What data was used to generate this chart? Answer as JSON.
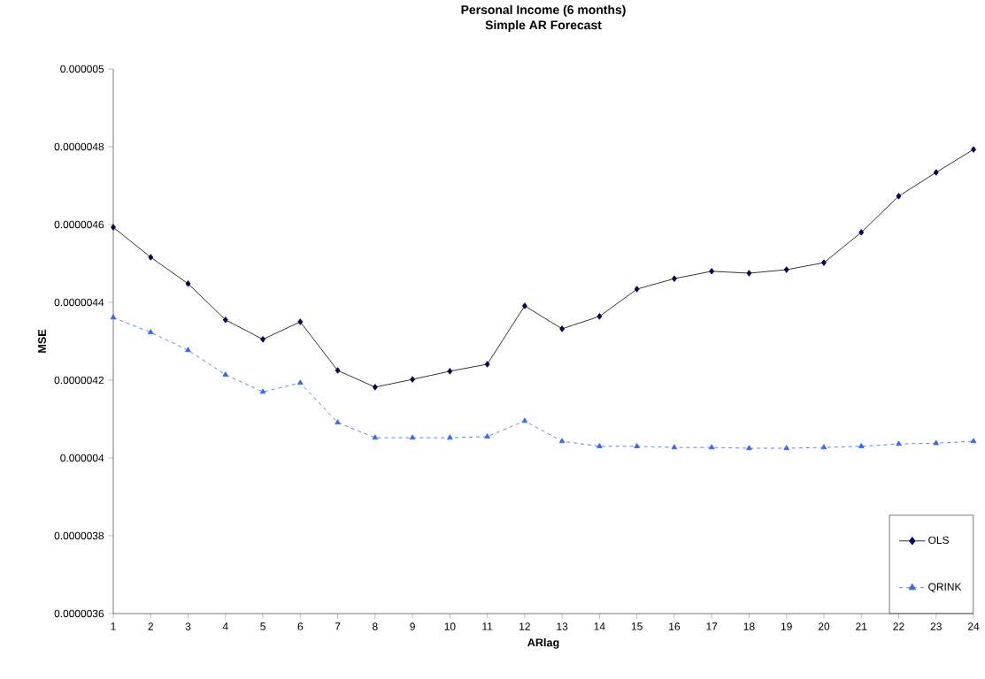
{
  "chart_data": {
    "type": "line",
    "title": "Personal Income (6 months)",
    "subtitle": "Simple AR Forecast",
    "xlabel": "ARlag",
    "ylabel": "MSE",
    "categories": [
      "1",
      "2",
      "3",
      "4",
      "5",
      "6",
      "7",
      "8",
      "9",
      "10",
      "11",
      "12",
      "13",
      "14",
      "15",
      "16",
      "17",
      "18",
      "19",
      "20",
      "21",
      "22",
      "23",
      "24"
    ],
    "series": [
      {
        "name": "OLS",
        "color": "#000080",
        "marker": "diamond",
        "line_style": "solid",
        "values": [
          4.593e-06,
          4.516e-06,
          4.448e-06,
          4.355e-06,
          4.305e-06,
          4.35e-06,
          4.225e-06,
          4.182e-06,
          4.202e-06,
          4.223e-06,
          4.241e-06,
          4.391e-06,
          4.332e-06,
          4.364e-06,
          4.434e-06,
          4.461e-06,
          4.48e-06,
          4.475e-06,
          4.484e-06,
          4.502e-06,
          4.58e-06,
          4.673e-06,
          4.734e-06,
          4.793e-06
        ]
      },
      {
        "name": "QRINK",
        "color": "#3366ff",
        "marker": "triangle",
        "line_style": "dashed",
        "values": [
          4.361e-06,
          4.323e-06,
          4.277e-06,
          4.214e-06,
          4.17e-06,
          4.193e-06,
          4.091e-06,
          4.052e-06,
          4.052e-06,
          4.052e-06,
          4.055e-06,
          4.095e-06,
          4.043e-06,
          4.03e-06,
          4.03e-06,
          4.027e-06,
          4.027e-06,
          4.025e-06,
          4.025e-06,
          4.027e-06,
          4.03e-06,
          4.036e-06,
          4.038e-06,
          4.043e-06
        ]
      }
    ],
    "ylim": [
      3.6e-06,
      5e-06
    ],
    "yticks": [
      {
        "value": 3.6e-06,
        "label": "0.0000036"
      },
      {
        "value": 3.8e-06,
        "label": "0.0000038"
      },
      {
        "value": 4e-06,
        "label": "0.000004"
      },
      {
        "value": 4.2e-06,
        "label": "0.0000042"
      },
      {
        "value": 4.4e-06,
        "label": "0.0000044"
      },
      {
        "value": 4.6e-06,
        "label": "0.0000046"
      },
      {
        "value": 4.8e-06,
        "label": "0.0000048"
      },
      {
        "value": 5e-06,
        "label": "0.000005"
      }
    ],
    "legend": "bottom right"
  }
}
